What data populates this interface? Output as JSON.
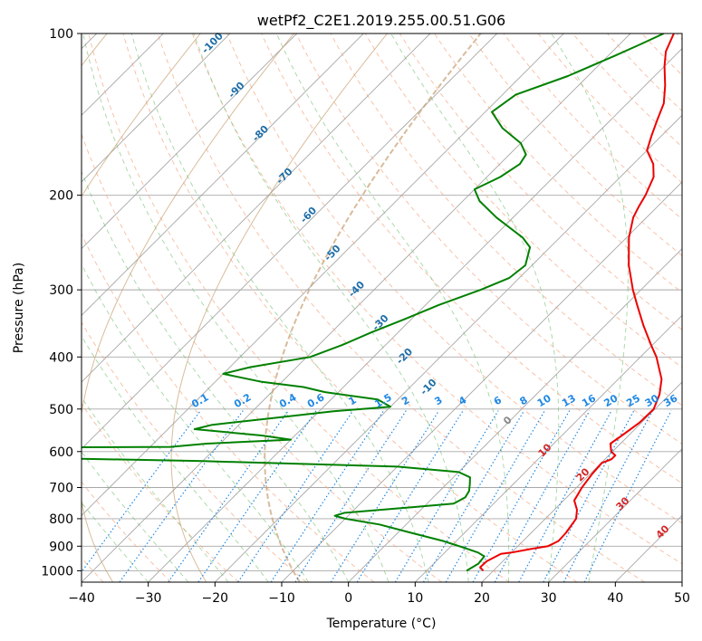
{
  "chart_data": {
    "type": "skew-t",
    "title": "wetPf2_C2E1.2019.255.00.51.G06",
    "xlabel": "Temperature (°C)",
    "ylabel": "Pressure (hPa)",
    "xlim": [
      -40,
      50
    ],
    "ylim": [
      1050,
      100
    ],
    "y_scale": "log",
    "x_ticks": [
      -40,
      -30,
      -20,
      -10,
      0,
      10,
      20,
      30,
      40,
      50
    ],
    "x_tick_labels": [
      "−40",
      "−30",
      "−20",
      "−10",
      "0",
      "10",
      "20",
      "30",
      "40",
      "50"
    ],
    "y_ticks": [
      100,
      200,
      300,
      400,
      500,
      600,
      700,
      800,
      900,
      1000
    ],
    "y_tick_labels": [
      "100",
      "200",
      "300",
      "400",
      "500",
      "600",
      "700",
      "800",
      "900",
      "1000"
    ],
    "grid": true,
    "series": [
      {
        "color": "#ee0000",
        "points": [
          [
            1000,
            18.5
          ],
          [
            985,
            17.5
          ],
          [
            960,
            17.6
          ],
          [
            930,
            18.6
          ],
          [
            925,
            20.0
          ],
          [
            910,
            22.5
          ],
          [
            900,
            24.5
          ],
          [
            880,
            25.3
          ],
          [
            850,
            25.2
          ],
          [
            800,
            24.6
          ],
          [
            770,
            23.4
          ],
          [
            740,
            21.6
          ],
          [
            700,
            20.8
          ],
          [
            660,
            20.3
          ],
          [
            630,
            20.1
          ],
          [
            620,
            21.0
          ],
          [
            610,
            21.0
          ],
          [
            600,
            19.8
          ],
          [
            580,
            18.5
          ],
          [
            560,
            19.0
          ],
          [
            530,
            19.7
          ],
          [
            500,
            19.8
          ],
          [
            470,
            18.5
          ],
          [
            440,
            16.5
          ],
          [
            420,
            14.5
          ],
          [
            400,
            12.4
          ],
          [
            380,
            9.8
          ],
          [
            350,
            5.8
          ],
          [
            320,
            1.7
          ],
          [
            300,
            -1.2
          ],
          [
            270,
            -5.5
          ],
          [
            240,
            -9.6
          ],
          [
            220,
            -12.0
          ],
          [
            210,
            -12.8
          ],
          [
            200,
            -13.5
          ],
          [
            185,
            -15.0
          ],
          [
            175,
            -17.0
          ],
          [
            165,
            -20.0
          ],
          [
            155,
            -21.5
          ],
          [
            145,
            -23.0
          ],
          [
            135,
            -24.5
          ],
          [
            125,
            -27.0
          ],
          [
            115,
            -30.0
          ],
          [
            108,
            -32.0
          ],
          [
            100,
            -33.5
          ]
        ]
      },
      {
        "color": "#008000",
        "points": [
          [
            1000,
            16.0
          ],
          [
            970,
            16.7
          ],
          [
            940,
            16.5
          ],
          [
            925,
            15.0
          ],
          [
            905,
            12.0
          ],
          [
            880,
            8.0
          ],
          [
            850,
            2.0
          ],
          [
            820,
            -4.0
          ],
          [
            800,
            -10.0
          ],
          [
            790,
            -12.0
          ],
          [
            780,
            -11.0
          ],
          [
            760,
            -1.0
          ],
          [
            750,
            4.0
          ],
          [
            730,
            4.8
          ],
          [
            710,
            4.4
          ],
          [
            690,
            3.5
          ],
          [
            670,
            2.5
          ],
          [
            655,
            0.0
          ],
          [
            640,
            -10.0
          ],
          [
            625,
            -40.0
          ],
          [
            615,
            -70.0
          ],
          [
            590,
            -70.0
          ],
          [
            588,
            -47.0
          ],
          [
            580,
            -42.0
          ],
          [
            570,
            -30.0
          ],
          [
            560,
            -35.0
          ],
          [
            545,
            -46.0
          ],
          [
            535,
            -44.0
          ],
          [
            520,
            -36.0
          ],
          [
            505,
            -28.0
          ],
          [
            495,
            -20.0
          ],
          [
            480,
            -23.0
          ],
          [
            465,
            -32.0
          ],
          [
            455,
            -36.0
          ],
          [
            445,
            -43.0
          ],
          [
            430,
            -50.0
          ],
          [
            418,
            -47.0
          ],
          [
            400,
            -39.5
          ],
          [
            380,
            -36.5
          ],
          [
            360,
            -34.0
          ],
          [
            340,
            -31.0
          ],
          [
            320,
            -28.0
          ],
          [
            300,
            -24.0
          ],
          [
            285,
            -21.5
          ],
          [
            270,
            -21.0
          ],
          [
            250,
            -23.0
          ],
          [
            240,
            -25.5
          ],
          [
            220,
            -32.5
          ],
          [
            205,
            -37.5
          ],
          [
            195,
            -40.0
          ],
          [
            185,
            -38.0
          ],
          [
            175,
            -37.0
          ],
          [
            168,
            -37.5
          ],
          [
            160,
            -40.0
          ],
          [
            150,
            -45.0
          ],
          [
            140,
            -49.0
          ],
          [
            130,
            -48.0
          ],
          [
            120,
            -43.0
          ],
          [
            110,
            -39.0
          ],
          [
            105,
            -37.0
          ],
          [
            100,
            -35.0
          ]
        ]
      }
    ],
    "mixing_ratio_labels": [
      "0.1",
      "0.2",
      "0.4",
      "0.6",
      "1",
      "1.5",
      "2",
      "3",
      "4",
      "6",
      "8",
      "10",
      "13",
      "16",
      "20",
      "25",
      "30",
      "36"
    ],
    "dry_adiabat_labels": [
      "-100",
      "-90",
      "-80",
      "-70",
      "-60",
      "-50",
      "-40",
      "-30",
      "-20",
      "-10"
    ],
    "freezing_label": "0",
    "moist_adiabat_labels": [
      "10",
      "20",
      "30",
      "40"
    ],
    "colors": {
      "temperature": "#ee0000",
      "dewpoint": "#008000",
      "mixing_ratio": "#1e88e5",
      "dry_adiabat_label": "#1f6fa8",
      "moist_adiabat": "#ff7f50",
      "moist_label": "#d62728",
      "green_dashed": "#66bb66",
      "tan_dashed": "#c8a070",
      "grid": "#a8a8a8"
    }
  }
}
